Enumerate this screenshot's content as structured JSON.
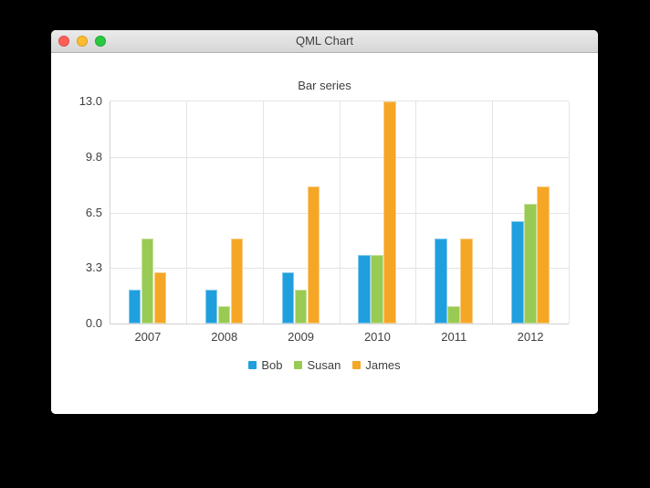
{
  "window": {
    "title": "QML Chart",
    "traffic_lights": {
      "close": "#ff5f57",
      "minimize": "#febc2e",
      "zoom": "#28c840"
    }
  },
  "chart_data": {
    "type": "bar",
    "title": "Bar series",
    "categories": [
      "2007",
      "2008",
      "2009",
      "2010",
      "2011",
      "2012"
    ],
    "series": [
      {
        "name": "Bob",
        "color": "#209fdf",
        "values": [
          2,
          2,
          3,
          4,
          5,
          6
        ]
      },
      {
        "name": "Susan",
        "color": "#99ca53",
        "values": [
          5,
          1,
          2,
          4,
          1,
          7
        ]
      },
      {
        "name": "James",
        "color": "#f6a625",
        "values": [
          3,
          5,
          8,
          13,
          5,
          8
        ]
      }
    ],
    "y_ticks": [
      {
        "value": 0,
        "label": "0.0"
      },
      {
        "value": 3.25,
        "label": "3.3"
      },
      {
        "value": 6.5,
        "label": "6.5"
      },
      {
        "value": 9.75,
        "label": "9.8"
      },
      {
        "value": 13,
        "label": "13.0"
      }
    ],
    "ylim": [
      0,
      13
    ],
    "grid": true,
    "legend_position": "bottom",
    "colors": {
      "grid": "#e4e4e4",
      "axis_line": "#d2d2d2",
      "label": "#404044",
      "background": "#ffffff"
    }
  }
}
